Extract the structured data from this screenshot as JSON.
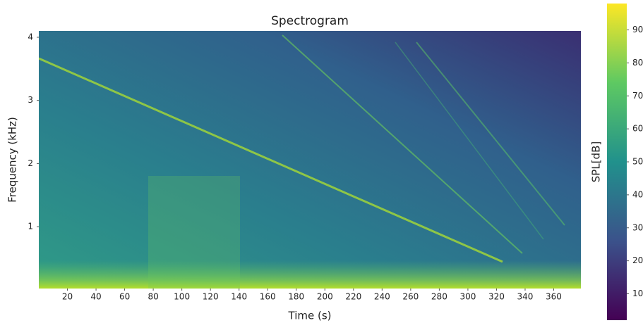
{
  "chart_data": {
    "type": "spectrogram",
    "title": "Spectrogram",
    "xlabel": "Time (s)",
    "ylabel": "Frequency (kHz)",
    "xlim": [
      0,
      379
    ],
    "xticks": [
      20,
      40,
      60,
      80,
      100,
      120,
      140,
      160,
      180,
      200,
      220,
      240,
      260,
      280,
      300,
      320,
      340,
      360
    ],
    "ylim": [
      0.02,
      4.1
    ],
    "yticks": [
      1,
      2,
      3,
      4
    ],
    "colorbar": {
      "label": "SPL[dB]",
      "clim": [
        2,
        98
      ],
      "ticks": [
        10,
        20,
        30,
        40,
        50,
        60,
        70,
        80,
        90
      ],
      "colormap": "viridis"
    }
  }
}
